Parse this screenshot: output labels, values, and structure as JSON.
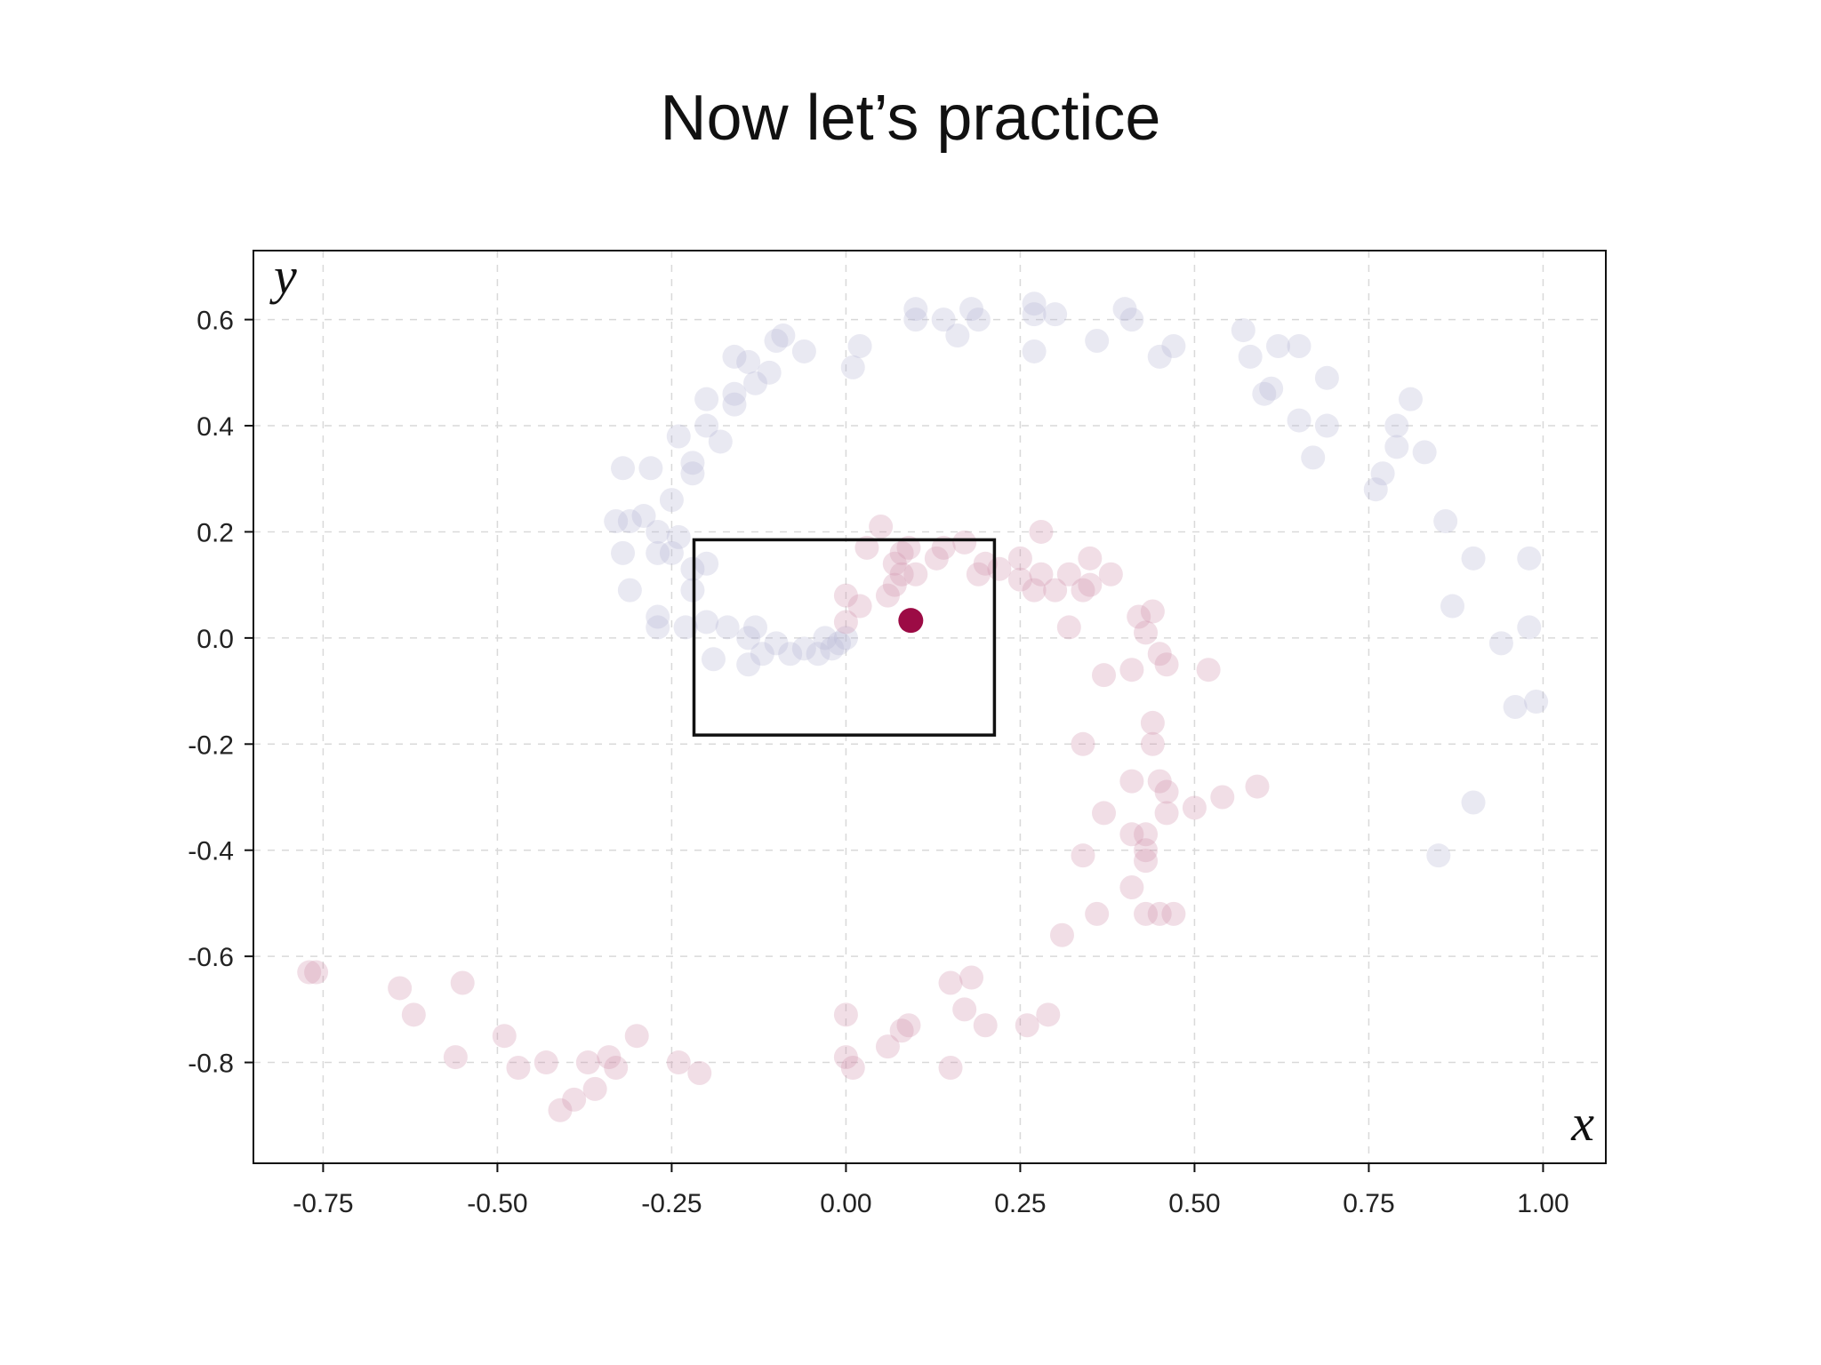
{
  "title": "Now let’s practice",
  "colors": {
    "class_a": "#b7b5d3",
    "class_b": "#cf91ab",
    "highlight": "#9c0b45",
    "grid": "#d9d9d9",
    "frame": "#111111"
  },
  "chart_data": {
    "type": "scatter",
    "title": "",
    "xlabel": "x",
    "ylabel": "y",
    "xlim": [
      -0.85,
      1.09
    ],
    "ylim": [
      -0.99,
      0.73
    ],
    "grid": true,
    "x_ticks": [
      -0.75,
      -0.5,
      -0.25,
      0.0,
      0.25,
      0.5,
      0.75,
      1.0
    ],
    "x_tick_labels": [
      "-0.75",
      "-0.50",
      "-0.25",
      "0.00",
      "0.25",
      "0.50",
      "0.75",
      "1.00"
    ],
    "y_ticks": [
      0.6,
      0.4,
      0.2,
      0.0,
      -0.2,
      -0.4,
      -0.6,
      -0.8
    ],
    "y_tick_labels": [
      "0.6",
      "0.4",
      "0.2",
      "0.0",
      "-0.2",
      "-0.4",
      "-0.6",
      "-0.8"
    ],
    "series": [
      {
        "color": "#b7b5d3",
        "opacity": 0.3,
        "points": [
          [
            -0.32,
            0.32
          ],
          [
            -0.28,
            0.32
          ],
          [
            -0.24,
            0.38
          ],
          [
            -0.22,
            0.33
          ],
          [
            -0.22,
            0.31
          ],
          [
            -0.25,
            0.26
          ],
          [
            -0.31,
            0.22
          ],
          [
            -0.33,
            0.22
          ],
          [
            -0.29,
            0.23
          ],
          [
            -0.27,
            0.2
          ],
          [
            -0.24,
            0.19
          ],
          [
            -0.27,
            0.16
          ],
          [
            -0.25,
            0.16
          ],
          [
            -0.32,
            0.16
          ],
          [
            -0.22,
            0.13
          ],
          [
            -0.2,
            0.14
          ],
          [
            -0.31,
            0.09
          ],
          [
            -0.22,
            0.09
          ],
          [
            -0.27,
            0.04
          ],
          [
            -0.27,
            0.02
          ],
          [
            -0.23,
            0.02
          ],
          [
            -0.2,
            0.03
          ],
          [
            -0.17,
            0.02
          ],
          [
            -0.13,
            0.02
          ],
          [
            -0.19,
            -0.04
          ],
          [
            -0.14,
            -0.05
          ],
          [
            -0.12,
            -0.03
          ],
          [
            -0.14,
            0.0
          ],
          [
            -0.1,
            -0.01
          ],
          [
            -0.08,
            -0.03
          ],
          [
            -0.06,
            -0.02
          ],
          [
            -0.04,
            -0.03
          ],
          [
            -0.02,
            -0.02
          ],
          [
            -0.03,
            0.0
          ],
          [
            -0.01,
            -0.01
          ],
          [
            0.0,
            0.0
          ],
          [
            -0.2,
            0.45
          ],
          [
            -0.2,
            0.4
          ],
          [
            -0.18,
            0.37
          ],
          [
            -0.16,
            0.44
          ],
          [
            -0.16,
            0.46
          ],
          [
            -0.16,
            0.53
          ],
          [
            -0.14,
            0.52
          ],
          [
            -0.13,
            0.48
          ],
          [
            -0.11,
            0.5
          ],
          [
            -0.1,
            0.56
          ],
          [
            -0.09,
            0.57
          ],
          [
            -0.06,
            0.54
          ],
          [
            0.01,
            0.51
          ],
          [
            0.02,
            0.55
          ],
          [
            0.1,
            0.62
          ],
          [
            0.1,
            0.6
          ],
          [
            0.14,
            0.6
          ],
          [
            0.16,
            0.57
          ],
          [
            0.18,
            0.62
          ],
          [
            0.19,
            0.6
          ],
          [
            0.27,
            0.63
          ],
          [
            0.27,
            0.61
          ],
          [
            0.3,
            0.61
          ],
          [
            0.27,
            0.54
          ],
          [
            0.36,
            0.56
          ],
          [
            0.4,
            0.62
          ],
          [
            0.41,
            0.6
          ],
          [
            0.45,
            0.53
          ],
          [
            0.47,
            0.55
          ],
          [
            0.57,
            0.58
          ],
          [
            0.58,
            0.53
          ],
          [
            0.6,
            0.46
          ],
          [
            0.61,
            0.47
          ],
          [
            0.62,
            0.55
          ],
          [
            0.65,
            0.55
          ],
          [
            0.65,
            0.41
          ],
          [
            0.67,
            0.34
          ],
          [
            0.69,
            0.49
          ],
          [
            0.69,
            0.4
          ],
          [
            0.76,
            0.28
          ],
          [
            0.77,
            0.31
          ],
          [
            0.79,
            0.36
          ],
          [
            0.79,
            0.4
          ],
          [
            0.81,
            0.45
          ],
          [
            0.83,
            0.35
          ],
          [
            0.86,
            0.22
          ],
          [
            0.87,
            0.06
          ],
          [
            0.9,
            0.15
          ],
          [
            0.94,
            -0.01
          ],
          [
            0.96,
            -0.13
          ],
          [
            0.98,
            0.15
          ],
          [
            0.98,
            0.02
          ],
          [
            0.99,
            -0.12
          ],
          [
            0.9,
            -0.31
          ],
          [
            0.85,
            -0.41
          ]
        ]
      },
      {
        "color": "#cf91ab",
        "opacity": 0.3,
        "points": [
          [
            0.0,
            0.03
          ],
          [
            0.0,
            0.08
          ],
          [
            0.02,
            0.06
          ],
          [
            0.03,
            0.17
          ],
          [
            0.05,
            0.21
          ],
          [
            0.06,
            0.08
          ],
          [
            0.07,
            0.14
          ],
          [
            0.07,
            0.1
          ],
          [
            0.08,
            0.16
          ],
          [
            0.08,
            0.12
          ],
          [
            0.09,
            0.17
          ],
          [
            0.1,
            0.12
          ],
          [
            0.13,
            0.15
          ],
          [
            0.14,
            0.17
          ],
          [
            0.17,
            0.18
          ],
          [
            0.19,
            0.12
          ],
          [
            0.2,
            0.14
          ],
          [
            0.22,
            0.13
          ],
          [
            0.25,
            0.11
          ],
          [
            0.25,
            0.15
          ],
          [
            0.27,
            0.09
          ],
          [
            0.28,
            0.12
          ],
          [
            0.28,
            0.2
          ],
          [
            0.3,
            0.09
          ],
          [
            0.32,
            0.12
          ],
          [
            0.32,
            0.02
          ],
          [
            0.34,
            0.09
          ],
          [
            0.35,
            0.1
          ],
          [
            0.35,
            0.15
          ],
          [
            0.38,
            0.12
          ],
          [
            0.37,
            -0.07
          ],
          [
            0.41,
            -0.06
          ],
          [
            0.42,
            0.04
          ],
          [
            0.43,
            0.01
          ],
          [
            0.44,
            0.05
          ],
          [
            0.45,
            -0.03
          ],
          [
            0.46,
            -0.05
          ],
          [
            0.52,
            -0.06
          ],
          [
            0.34,
            -0.2
          ],
          [
            0.44,
            -0.16
          ],
          [
            0.44,
            -0.2
          ],
          [
            0.41,
            -0.27
          ],
          [
            0.45,
            -0.27
          ],
          [
            0.46,
            -0.29
          ],
          [
            0.46,
            -0.33
          ],
          [
            0.37,
            -0.33
          ],
          [
            0.41,
            -0.37
          ],
          [
            0.43,
            -0.37
          ],
          [
            0.43,
            -0.4
          ],
          [
            0.43,
            -0.42
          ],
          [
            0.34,
            -0.41
          ],
          [
            0.41,
            -0.47
          ],
          [
            0.36,
            -0.52
          ],
          [
            0.43,
            -0.52
          ],
          [
            0.45,
            -0.52
          ],
          [
            0.47,
            -0.52
          ],
          [
            0.31,
            -0.56
          ],
          [
            0.5,
            -0.32
          ],
          [
            0.54,
            -0.3
          ],
          [
            0.59,
            -0.28
          ],
          [
            -0.77,
            -0.63
          ],
          [
            -0.76,
            -0.63
          ],
          [
            -0.64,
            -0.66
          ],
          [
            -0.62,
            -0.71
          ],
          [
            -0.56,
            -0.79
          ],
          [
            -0.55,
            -0.65
          ],
          [
            -0.49,
            -0.75
          ],
          [
            -0.47,
            -0.81
          ],
          [
            -0.43,
            -0.8
          ],
          [
            -0.41,
            -0.89
          ],
          [
            -0.39,
            -0.87
          ],
          [
            -0.37,
            -0.8
          ],
          [
            -0.36,
            -0.85
          ],
          [
            -0.34,
            -0.79
          ],
          [
            -0.33,
            -0.81
          ],
          [
            -0.3,
            -0.75
          ],
          [
            -0.24,
            -0.8
          ],
          [
            -0.21,
            -0.82
          ],
          [
            0.0,
            -0.71
          ],
          [
            0.0,
            -0.79
          ],
          [
            0.01,
            -0.81
          ],
          [
            0.06,
            -0.77
          ],
          [
            0.08,
            -0.74
          ],
          [
            0.09,
            -0.73
          ],
          [
            0.15,
            -0.81
          ],
          [
            0.15,
            -0.65
          ],
          [
            0.17,
            -0.7
          ],
          [
            0.18,
            -0.64
          ],
          [
            0.2,
            -0.73
          ],
          [
            0.26,
            -0.73
          ],
          [
            0.29,
            -0.71
          ]
        ]
      }
    ],
    "highlight_point": [
      0.093,
      0.033
    ],
    "selection_box": {
      "x": [
        -0.218,
        0.213
      ],
      "y": [
        -0.183,
        0.185
      ]
    }
  }
}
